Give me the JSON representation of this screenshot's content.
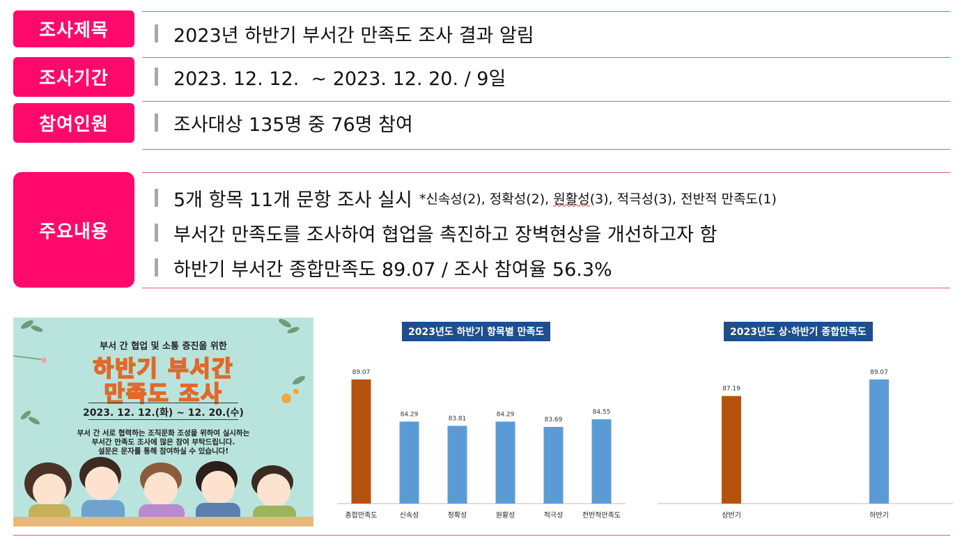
{
  "rows": [
    {
      "label": "조사제목",
      "text": "2023년 하반기 부서간 만족도 조사 결과 알림"
    },
    {
      "label": "조사기간",
      "text": "2023. 12. 12.  ~ 2023. 12. 20. / 9일"
    },
    {
      "label": "참여인원",
      "text": "조사대상 135명 중 76명 참여"
    }
  ],
  "main": {
    "label": "주요내용",
    "line1": "5개 항목 11개 문항 조사 실시",
    "line1_note_a": "*신속성(2), 정확성(2), ",
    "line1_note_b": "원활성",
    "line1_note_c": "(3), 적극성(3), 전반적 만족도(1)",
    "line2": "부서간 만족도를 조사하여 협업을 촉진하고 장벽현상을 개선하고자 함",
    "line3": "하반기 부서간 종합만족도 89.07 / 조사 참여율 56.3%"
  },
  "poster": {
    "subtitle": "부서 간 협업 및 소통 증진을 위한",
    "title_line1": "하반기 부서간",
    "title_line2": "만족도 조사",
    "date": "2023. 12. 12.(화) ~ 12. 20.(수)",
    "body_line1": "부서 간 서로 협력하는 조직문화 조성을 위하여 실시하는",
    "body_line2": "부서간 만족도 조사에 많은 참여 부탁드립니다.",
    "body_line3": "설문은 문자를 통해 참여하실 수 있습니다!"
  },
  "colors": {
    "accent": "#ff0a6c",
    "orange": "#b5520e",
    "blue": "#5b9bd5",
    "title_bg": "#1f4e8c"
  },
  "chart_data": [
    {
      "type": "bar",
      "title": "2023년도 하반기 항목별 만족도",
      "categories": [
        "종합만족도",
        "신속성",
        "정확성",
        "원활성",
        "적극성",
        "전반적만족도"
      ],
      "values": [
        89.07,
        84.29,
        83.81,
        84.29,
        83.69,
        84.55
      ],
      "labels": [
        "89.07",
        "84.29",
        "83.81",
        "84.29",
        "83.69",
        "84.55"
      ],
      "highlight_index": 0,
      "ylim": [
        75,
        90
      ]
    },
    {
      "type": "bar",
      "title": "2023년도 상·하반기 종합만족도",
      "categories": [
        "상반기",
        "하반기"
      ],
      "values": [
        87.19,
        89.07
      ],
      "labels": [
        "87.19",
        "89.07"
      ],
      "highlight_index": 0,
      "ylim": [
        75,
        90
      ]
    }
  ]
}
